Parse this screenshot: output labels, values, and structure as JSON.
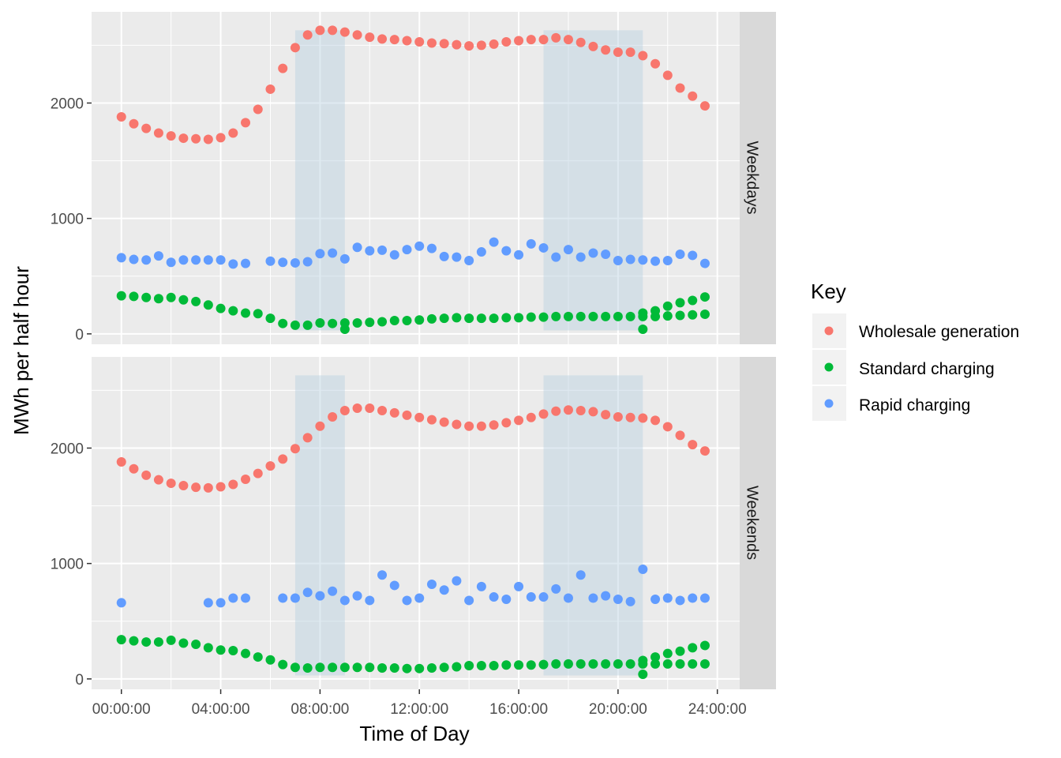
{
  "chart_data": {
    "type": "scatter",
    "xlabel": "Time of Day",
    "ylabel": "MWh per half hour",
    "x_ticks": [
      "00:00:00",
      "04:00:00",
      "08:00:00",
      "12:00:00",
      "16:00:00",
      "20:00:00",
      "24:00:00"
    ],
    "y_ticks": [
      0,
      1000,
      2000
    ],
    "x_unit": "hours",
    "xlim": [
      -1.2,
      24.9
    ],
    "legend": {
      "title": "Key",
      "position": "right",
      "entries": [
        "Wholesale generation",
        "Standard charging",
        "Rapid charging"
      ]
    },
    "colors": {
      "Wholesale generation": "#f8766d",
      "Standard charging": "#00ba38",
      "Rapid charging": "#619cff",
      "shade": "#b8d0e0",
      "panel_bg": "#ebebeb",
      "strip_bg": "#d9d9d9"
    },
    "shaded_periods_hours": [
      [
        7.0,
        9.0
      ],
      [
        17.0,
        21.0
      ]
    ],
    "panels": [
      {
        "name": "Weekdays",
        "ylim": [
          -90,
          2790
        ],
        "shade_range": [
          30,
          2630
        ],
        "series": {
          "Wholesale generation": [
            1880,
            1820,
            1780,
            1740,
            1715,
            1695,
            1690,
            1685,
            1700,
            1740,
            1830,
            1945,
            2120,
            2300,
            2480,
            2590,
            2630,
            2630,
            2615,
            2590,
            2570,
            2555,
            2550,
            2540,
            2530,
            2520,
            2515,
            2505,
            2495,
            2500,
            2510,
            2530,
            2540,
            2550,
            2550,
            2565,
            2550,
            2525,
            2490,
            2460,
            2440,
            2440,
            2410,
            2340,
            2240,
            2130,
            2060,
            1975
          ],
          "Standard charging": [
            330,
            325,
            315,
            305,
            315,
            295,
            280,
            250,
            220,
            200,
            180,
            175,
            135,
            90,
            75,
            75,
            95,
            90,
            95,
            95,
            100,
            105,
            115,
            115,
            120,
            130,
            135,
            140,
            135,
            135,
            135,
            140,
            140,
            145,
            145,
            150,
            150,
            150,
            150,
            150,
            150,
            150,
            150,
            150,
            155,
            160,
            165,
            170
          ],
          "Standard charging extra": [
            [
              9.0,
              40
            ],
            [
              21.0,
              40
            ],
            [
              21.0,
              180
            ],
            [
              21.5,
              200
            ],
            [
              22.0,
              240
            ],
            [
              22.5,
              270
            ],
            [
              23.0,
              290
            ],
            [
              23.5,
              320
            ]
          ],
          "Rapid charging": [
            660,
            645,
            640,
            675,
            620,
            640,
            640,
            640,
            640,
            605,
            610,
            null,
            630,
            620,
            615,
            625,
            695,
            700,
            650,
            750,
            720,
            725,
            685,
            730,
            760,
            740,
            670,
            665,
            635,
            710,
            795,
            720,
            685,
            780,
            745,
            665,
            730,
            665,
            700,
            690,
            635,
            645,
            640,
            630,
            635,
            690,
            680,
            610
          ]
        }
      },
      {
        "name": "Weekends",
        "ylim": [
          -90,
          2790
        ],
        "shade_range": [
          30,
          2630
        ],
        "series": {
          "Wholesale generation": [
            1880,
            1820,
            1765,
            1725,
            1695,
            1675,
            1660,
            1655,
            1665,
            1685,
            1730,
            1780,
            1845,
            1905,
            1995,
            2090,
            2190,
            2270,
            2325,
            2345,
            2345,
            2325,
            2305,
            2285,
            2265,
            2245,
            2225,
            2205,
            2190,
            2190,
            2200,
            2220,
            2240,
            2265,
            2295,
            2320,
            2330,
            2325,
            2315,
            2290,
            2270,
            2265,
            2260,
            2240,
            2185,
            2110,
            2030,
            1975
          ],
          "Standard charging": [
            340,
            330,
            320,
            320,
            335,
            310,
            300,
            270,
            250,
            245,
            220,
            190,
            165,
            125,
            100,
            95,
            100,
            100,
            100,
            100,
            100,
            95,
            95,
            90,
            90,
            95,
            100,
            105,
            115,
            115,
            115,
            120,
            120,
            120,
            125,
            130,
            130,
            130,
            130,
            130,
            130,
            130,
            130,
            130,
            130,
            130,
            130,
            130
          ],
          "Standard charging extra": [
            [
              21.0,
              40
            ],
            [
              21.0,
              160
            ],
            [
              21.5,
              190
            ],
            [
              22.0,
              220
            ],
            [
              22.5,
              240
            ],
            [
              23.0,
              270
            ],
            [
              23.5,
              290
            ]
          ],
          "Rapid charging": [
            660,
            null,
            null,
            null,
            null,
            null,
            null,
            660,
            660,
            700,
            700,
            null,
            null,
            700,
            700,
            750,
            720,
            760,
            680,
            720,
            680,
            900,
            810,
            680,
            700,
            820,
            770,
            850,
            680,
            800,
            710,
            690,
            800,
            710,
            710,
            780,
            700,
            900,
            700,
            720,
            690,
            670,
            950,
            690,
            700,
            680,
            700,
            700
          ]
        }
      }
    ]
  }
}
